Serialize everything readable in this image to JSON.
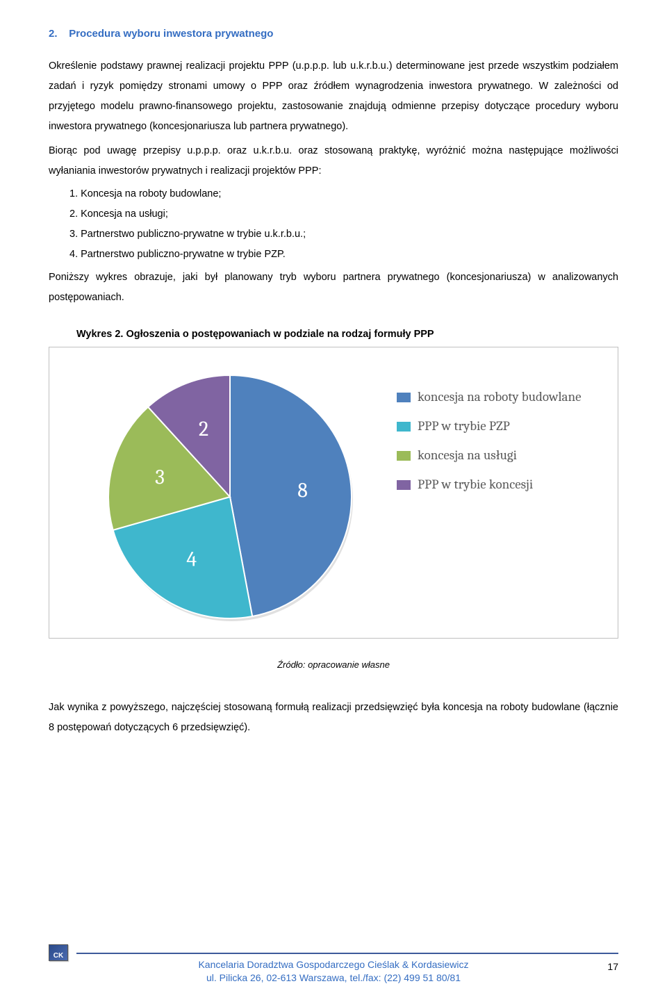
{
  "section": {
    "number": "2.",
    "title": "Procedura wyboru inwestora prywatnego"
  },
  "paragraphs": {
    "p1": "Określenie podstawy prawnej realizacji projektu PPP (u.p.p.p. lub u.k.r.b.u.) determinowane jest przede wszystkim podziałem zadań i ryzyk pomiędzy stronami umowy o PPP oraz źródłem wynagrodzenia inwestora prywatnego. W zależności od przyjętego modelu prawno-finansowego projektu, zastosowanie znajdują odmienne przepisy dotyczące procedury wyboru inwestora prywatnego (koncesjonariusza lub partnera prywatnego).",
    "p2_lead": "Biorąc pod uwagę przepisy u.p.p.p. oraz u.k.r.b.u. oraz stosowaną praktykę, wyróżnić można następujące możliwości wyłaniania inwestorów prywatnych i realizacji projektów PPP:",
    "list": {
      "i1": "1.  Koncesja na roboty budowlane;",
      "i2": "2.  Koncesja na usługi;",
      "i3": "3.  Partnerstwo publiczno-prywatne w trybie u.k.r.b.u.;",
      "i4": "4.  Partnerstwo publiczno-prywatne w trybie PZP."
    },
    "p3": "Poniższy wykres obrazuje, jaki był planowany tryb wyboru partnera prywatnego (koncesjonariusza) w analizowanych postępowaniach.",
    "p4": "Jak wynika z powyższego, najczęściej stosowaną formułą realizacji przedsięwzięć była koncesja na roboty budowlane (łącznie 8 postępowań dotyczących 6 przedsięwzięć)."
  },
  "chart": {
    "title": "Wykres 2. Ogłoszenia o postępowaniach w podziale na rodzaj formuły PPP",
    "type": "pie",
    "slices": [
      {
        "label": "8",
        "value": 8,
        "color": "#4f81bd",
        "legend": "koncesja na roboty budowlane"
      },
      {
        "label": "4",
        "value": 4,
        "color": "#3fb7cd",
        "legend": "PPP w trybie PZP"
      },
      {
        "label": "3",
        "value": 3,
        "color": "#9bbb59",
        "legend": "koncesja na usługi"
      },
      {
        "label": "2",
        "value": 2,
        "color": "#8064a2",
        "legend": "PPP w trybie koncesji"
      }
    ],
    "label_color": "#ffffff",
    "label_fontsize": 30,
    "legend_fontsize": 19,
    "legend_text_color": "#595959",
    "background_color": "#ffffff",
    "source": "Źródło: opracowanie własne"
  },
  "footer": {
    "logo_text": "CK",
    "line1": "Kancelaria Doradztwa Gospodarczego Cieślak & Kordasiewicz",
    "line2": "ul. Pilicka 26, 02-613 Warszawa, tel./fax: (22) 499 51 80/81",
    "page": "17"
  }
}
